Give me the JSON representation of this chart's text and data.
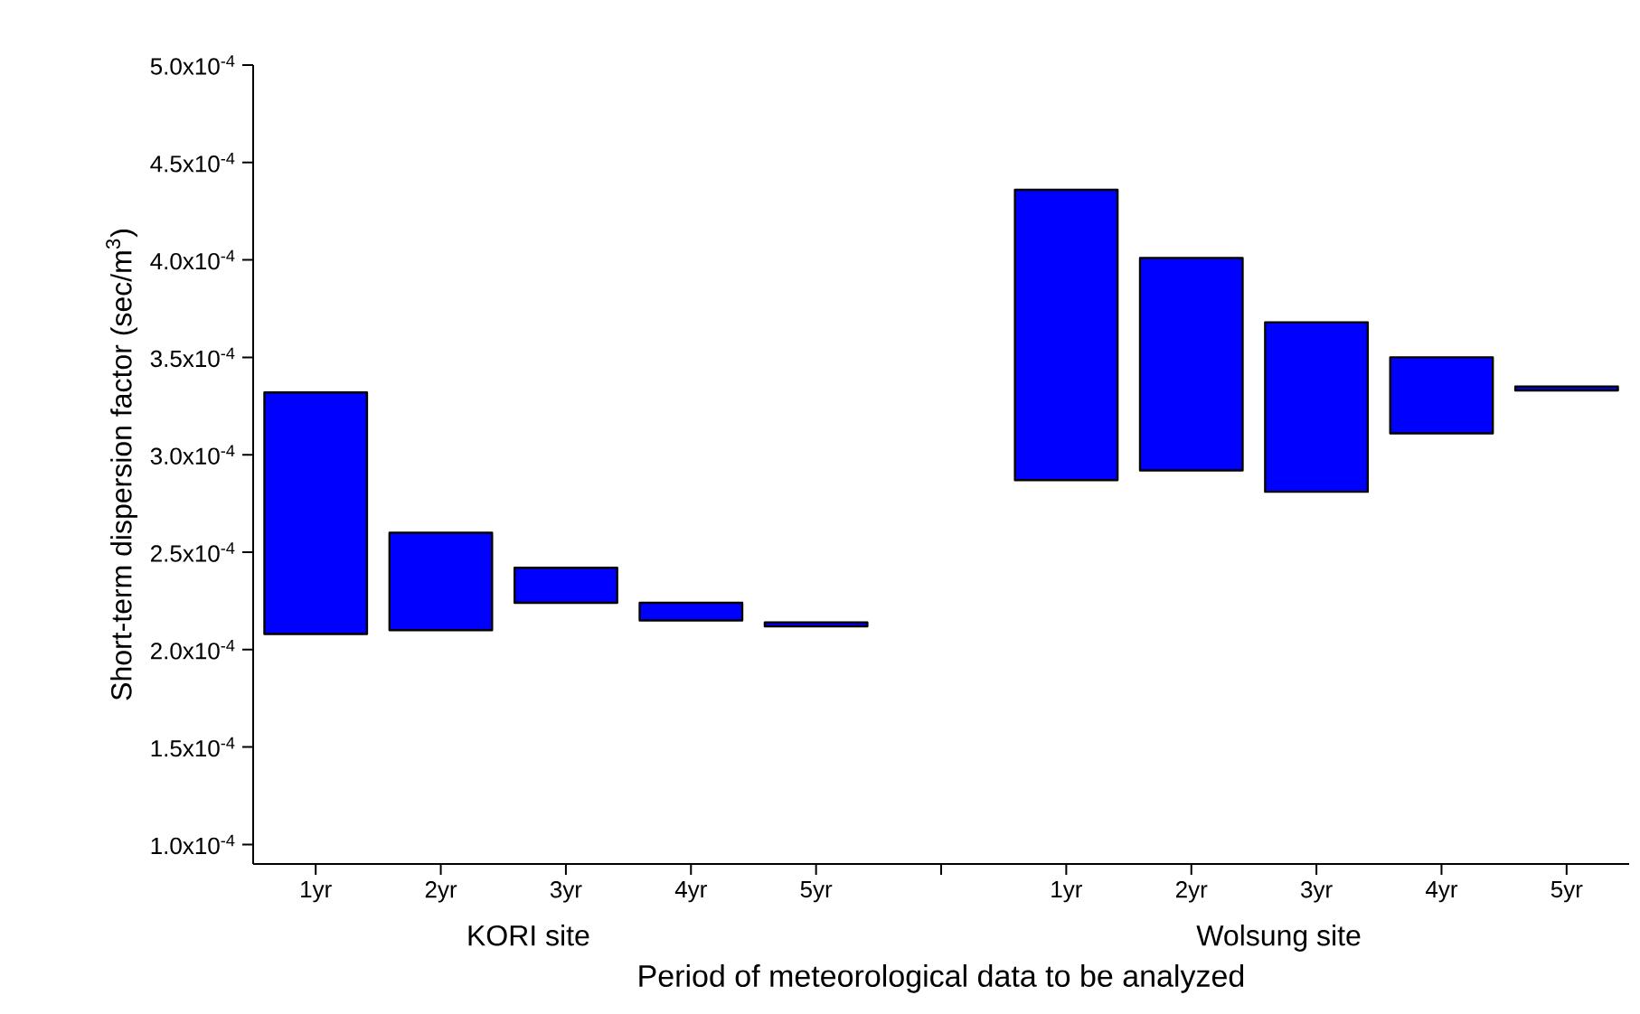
{
  "chart_data": {
    "type": "bar",
    "xlabel": "Period of meteorological data to be analyzed",
    "ylabel": "Short-term dispersion factor (sec/m$^{3}$)",
    "categories": [
      "1yr",
      "2yr",
      "3yr",
      "4yr",
      "5yr",
      null,
      "1yr",
      "2yr",
      "3yr",
      "4yr",
      "5yr"
    ],
    "base": [
      0.000208,
      0.00021,
      0.000224,
      0.000215,
      0.000212,
      null,
      0.000287,
      0.000292,
      0.000281,
      0.000311,
      0.000333
    ],
    "values": [
      0.000124,
      5e-05,
      1.8e-05,
      9e-06,
      2e-06,
      null,
      0.000149,
      0.000109,
      8.7e-05,
      3.9e-05,
      2e-06
    ],
    "color": "#0000ff",
    "ylim": [
      9e-05,
      0.0005
    ],
    "yticks": [
      {
        "value": 0.0001,
        "label": "1.0x10$^{-4}$"
      },
      {
        "value": 0.00015,
        "label": "1.5x10$^{-4}$"
      },
      {
        "value": 0.0002,
        "label": "2.0x10$^{-4}$"
      },
      {
        "value": 0.00025,
        "label": "2.5x10$^{-4}$"
      },
      {
        "value": 0.0003,
        "label": "3.0x10$^{-4}$"
      },
      {
        "value": 0.00035,
        "label": "3.5x10$^{-4}$"
      },
      {
        "value": 0.0004,
        "label": "4.0x10$^{-4}$"
      },
      {
        "value": 0.00045,
        "label": "4.5x10$^{-4}$"
      },
      {
        "value": 0.0005,
        "label": "5.0x10$^{-4}$"
      }
    ],
    "annotations": [
      "KORI site",
      "Wolsung site"
    ]
  }
}
